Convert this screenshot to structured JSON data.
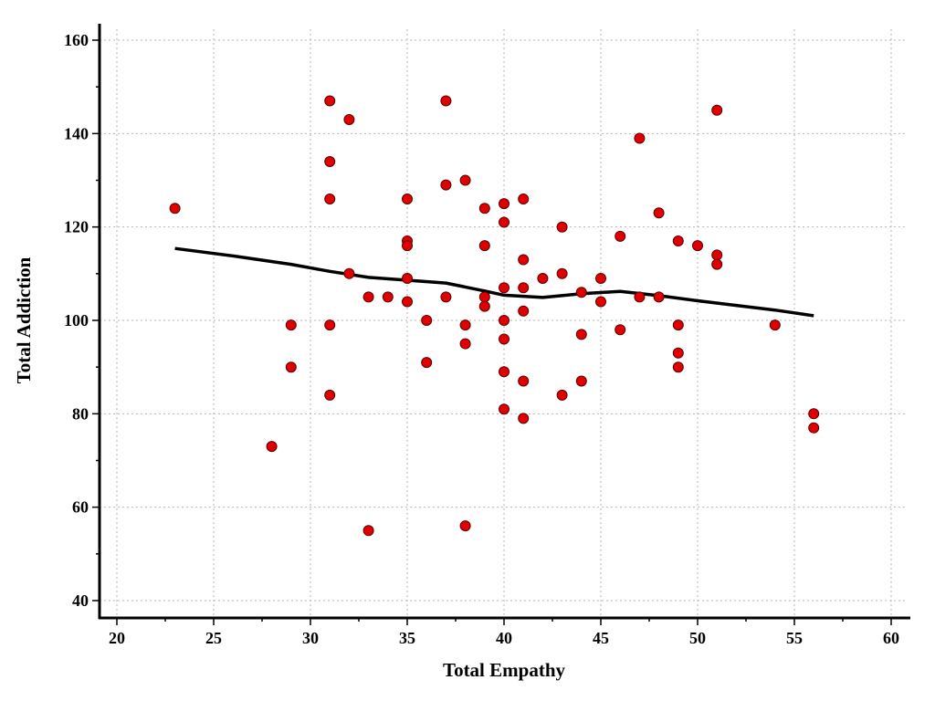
{
  "chart_data": {
    "type": "scatter",
    "xlabel": "Total Empathy",
    "ylabel": "Total Addiction",
    "xlim": [
      20,
      60
    ],
    "ylim": [
      40,
      160
    ],
    "x_ticks": [
      "20",
      "25",
      "30",
      "35",
      "40",
      "45",
      "50",
      "55",
      "60"
    ],
    "y_ticks": [
      "40",
      "60",
      "80",
      "100",
      "120",
      "140",
      "160"
    ],
    "grid": true,
    "point_color": "#e00000",
    "trend_color": "#000000",
    "points": [
      [
        23,
        124
      ],
      [
        28,
        73
      ],
      [
        29,
        99
      ],
      [
        29,
        90
      ],
      [
        31,
        147
      ],
      [
        31,
        134
      ],
      [
        31,
        126
      ],
      [
        31,
        99
      ],
      [
        31,
        84
      ],
      [
        32,
        143
      ],
      [
        32,
        110
      ],
      [
        33,
        105
      ],
      [
        33,
        55
      ],
      [
        34,
        105
      ],
      [
        35,
        126
      ],
      [
        35,
        117
      ],
      [
        35,
        116
      ],
      [
        35,
        109
      ],
      [
        35,
        104
      ],
      [
        36,
        100
      ],
      [
        36,
        91
      ],
      [
        37,
        147
      ],
      [
        37,
        129
      ],
      [
        37,
        105
      ],
      [
        38,
        130
      ],
      [
        38,
        99
      ],
      [
        38,
        95
      ],
      [
        38,
        56
      ],
      [
        39,
        124
      ],
      [
        39,
        116
      ],
      [
        39,
        105
      ],
      [
        39,
        103
      ],
      [
        40,
        125
      ],
      [
        40,
        121
      ],
      [
        40,
        107
      ],
      [
        40,
        100
      ],
      [
        40,
        96
      ],
      [
        40,
        89
      ],
      [
        40,
        81
      ],
      [
        41,
        126
      ],
      [
        41,
        113
      ],
      [
        41,
        107
      ],
      [
        41,
        102
      ],
      [
        41,
        87
      ],
      [
        41,
        79
      ],
      [
        42,
        109
      ],
      [
        43,
        120
      ],
      [
        43,
        110
      ],
      [
        43,
        84
      ],
      [
        44,
        106
      ],
      [
        44,
        97
      ],
      [
        44,
        87
      ],
      [
        45,
        109
      ],
      [
        45,
        104
      ],
      [
        46,
        118
      ],
      [
        46,
        98
      ],
      [
        47,
        139
      ],
      [
        47,
        105
      ],
      [
        48,
        123
      ],
      [
        48,
        105
      ],
      [
        49,
        117
      ],
      [
        49,
        99
      ],
      [
        49,
        93
      ],
      [
        49,
        90
      ],
      [
        50,
        116
      ],
      [
        51,
        145
      ],
      [
        51,
        114
      ],
      [
        51,
        112
      ],
      [
        54,
        99
      ],
      [
        56,
        80
      ],
      [
        56,
        77
      ]
    ],
    "trend_line": [
      [
        23,
        115.4
      ],
      [
        26,
        113.8
      ],
      [
        29,
        112.0
      ],
      [
        31,
        110.5
      ],
      [
        33,
        109.2
      ],
      [
        35,
        108.6
      ],
      [
        37,
        108.0
      ],
      [
        39,
        106.3
      ],
      [
        40,
        105.4
      ],
      [
        42,
        104.9
      ],
      [
        44,
        105.7
      ],
      [
        46,
        106.2
      ],
      [
        48,
        105.3
      ],
      [
        50,
        104.2
      ],
      [
        52,
        103.2
      ],
      [
        54,
        102.2
      ],
      [
        56,
        101.0
      ]
    ]
  }
}
